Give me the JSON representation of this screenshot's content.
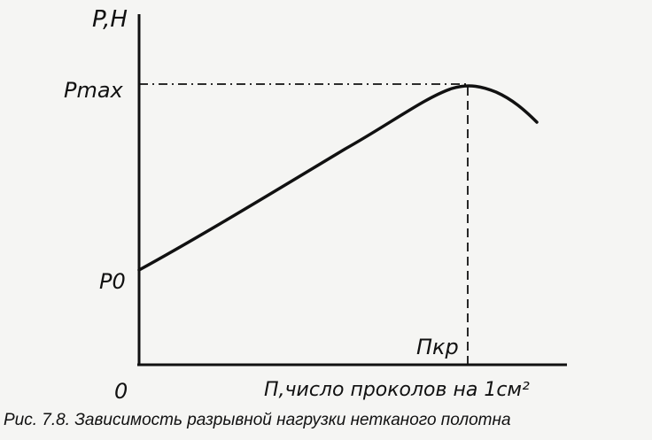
{
  "axes": {
    "y_label": "P,H",
    "origin_label": "0",
    "x_label": "П,число проколов на 1см²",
    "p0_label": "P0",
    "pmax_label": "Pmax",
    "nkr_label": "Пкр"
  },
  "caption": "Рис. 7.8. Зависимость разрывной нагрузки нетканого полотна",
  "colors": {
    "ink": "#111111",
    "paper": "#f5f5f3"
  }
}
